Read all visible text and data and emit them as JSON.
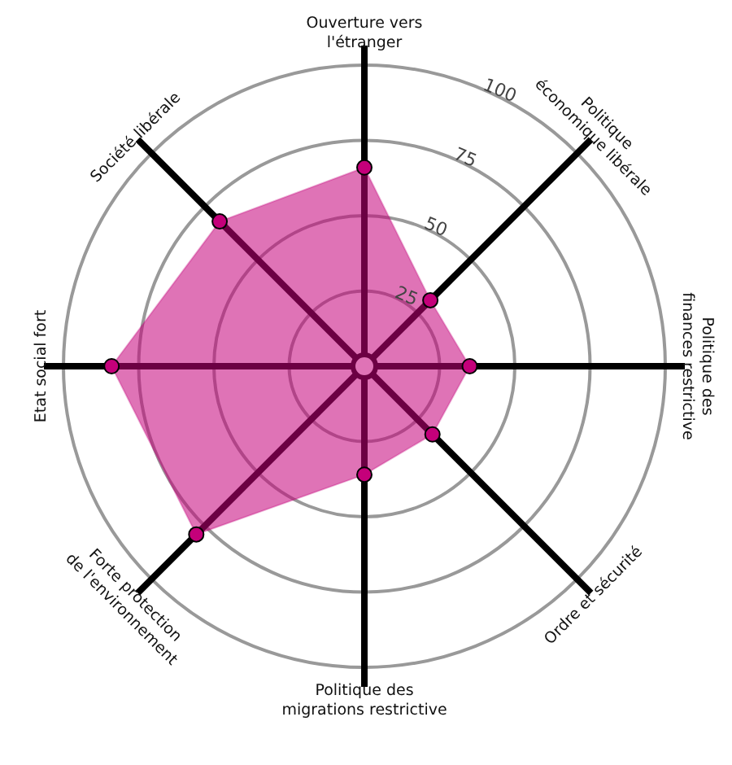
{
  "chart_data": {
    "type": "radar",
    "categories": [
      "Ouverture vers l'étranger",
      "Politique économique libérale",
      "Politique des finances restrictive",
      "Ordre et sécurité",
      "Politique des migrations restrictive",
      "Forte protection de l'environnement",
      "Etat social fort",
      "Société libérale"
    ],
    "series": [
      {
        "color": "#c4007a",
        "values": [
          66,
          31,
          35,
          32,
          36,
          79,
          84,
          68
        ]
      }
    ],
    "ylim": [
      0,
      100
    ],
    "yticks": [
      25,
      50,
      75,
      100
    ],
    "grid": true,
    "marker": "circle"
  }
}
